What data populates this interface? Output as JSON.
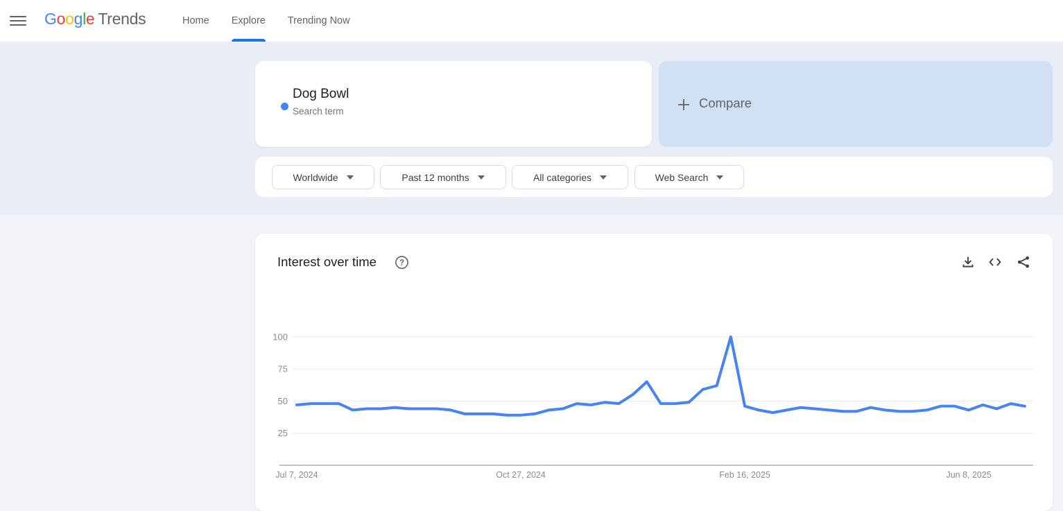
{
  "header": {
    "logo": {
      "letters": [
        {
          "ch": "G",
          "color": "#4285F4"
        },
        {
          "ch": "o",
          "color": "#EA4335"
        },
        {
          "ch": "o",
          "color": "#FBBC05"
        },
        {
          "ch": "g",
          "color": "#4285F4"
        },
        {
          "ch": "l",
          "color": "#34A853"
        },
        {
          "ch": "e",
          "color": "#EA4335"
        }
      ],
      "product": "Trends"
    },
    "nav": [
      {
        "label": "Home",
        "active": false
      },
      {
        "label": "Explore",
        "active": true
      },
      {
        "label": "Trending Now",
        "active": false
      }
    ],
    "accent_color": "#1a73e8"
  },
  "term_card": {
    "term": "Dog Bowl",
    "type_label": "Search term",
    "dot_color": "#4285f4"
  },
  "compare_card": {
    "label": "Compare",
    "background": "#d2e0f3"
  },
  "filters": [
    "Worldwide",
    "Past 12 months",
    "All categories",
    "Web Search"
  ],
  "chart_card": {
    "title": "Interest over time",
    "icons": [
      "download-icon",
      "embed-icon",
      "share-icon"
    ]
  },
  "chart_data": {
    "type": "line",
    "title": "Interest over time",
    "series_name": "Dog Bowl",
    "line_color": "#4683f4",
    "x": [
      "Jul 7, 2024",
      "Jul 14, 2024",
      "Jul 21, 2024",
      "Jul 28, 2024",
      "Aug 4, 2024",
      "Aug 11, 2024",
      "Aug 18, 2024",
      "Aug 25, 2024",
      "Sep 1, 2024",
      "Sep 8, 2024",
      "Sep 15, 2024",
      "Sep 22, 2024",
      "Sep 29, 2024",
      "Oct 6, 2024",
      "Oct 13, 2024",
      "Oct 20, 2024",
      "Oct 27, 2024",
      "Nov 3, 2024",
      "Nov 10, 2024",
      "Nov 17, 2024",
      "Nov 24, 2024",
      "Dec 1, 2024",
      "Dec 8, 2024",
      "Dec 15, 2024",
      "Dec 22, 2024",
      "Dec 29, 2024",
      "Jan 5, 2025",
      "Jan 12, 2025",
      "Jan 19, 2025",
      "Jan 26, 2025",
      "Feb 2, 2025",
      "Feb 9, 2025",
      "Feb 16, 2025",
      "Feb 23, 2025",
      "Mar 2, 2025",
      "Mar 9, 2025",
      "Mar 16, 2025",
      "Mar 23, 2025",
      "Mar 30, 2025",
      "Apr 6, 2025",
      "Apr 13, 2025",
      "Apr 20, 2025",
      "Apr 27, 2025",
      "May 4, 2025",
      "May 11, 2025",
      "May 18, 2025",
      "May 25, 2025",
      "Jun 1, 2025",
      "Jun 8, 2025",
      "Jun 15, 2025",
      "Jun 22, 2025",
      "Jun 29, 2025",
      "Jul 6, 2025"
    ],
    "values": [
      47,
      48,
      48,
      48,
      43,
      44,
      44,
      45,
      44,
      44,
      44,
      43,
      40,
      40,
      40,
      39,
      39,
      40,
      43,
      44,
      48,
      47,
      49,
      48,
      55,
      65,
      48,
      48,
      49,
      59,
      62,
      100,
      46,
      43,
      41,
      43,
      45,
      44,
      43,
      42,
      42,
      45,
      43,
      42,
      42,
      43,
      46,
      46,
      43,
      47,
      44,
      48,
      46
    ],
    "xticks": [
      {
        "index": 0,
        "label": "Jul 7, 2024"
      },
      {
        "index": 16,
        "label": "Oct 27, 2024"
      },
      {
        "index": 32,
        "label": "Feb 16, 2025"
      },
      {
        "index": 48,
        "label": "Jun 8, 2025"
      }
    ],
    "yticks": [
      100,
      75,
      50,
      25
    ],
    "ylim": [
      0,
      100
    ],
    "grid": "horizontal",
    "legend": "none"
  }
}
